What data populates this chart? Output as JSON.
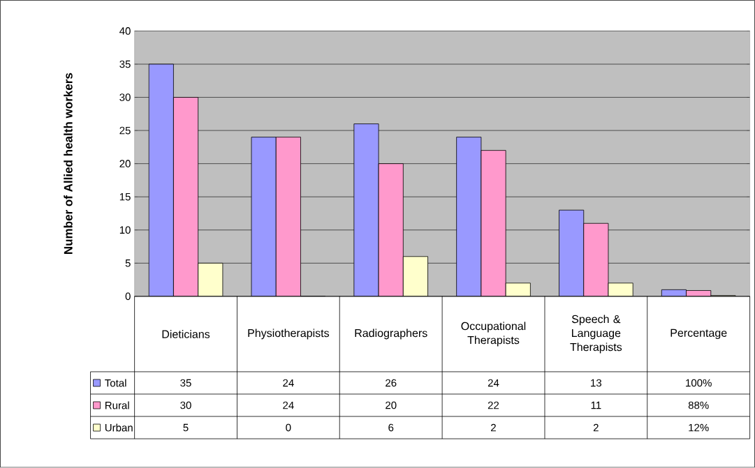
{
  "chart_data": {
    "type": "bar",
    "ylabel": "Number of Allied health workers",
    "categories": [
      "Dieticians",
      "Physiotherapists",
      "Radiographers",
      "Occupational Therapists",
      "Speech & Language Therapists",
      "Percentage"
    ],
    "series": [
      {
        "name": "Total",
        "color": "#9999ff",
        "values": [
          35,
          24,
          26,
          24,
          13,
          1
        ],
        "value_labels": [
          "35",
          "24",
          "26",
          "24",
          "13",
          "100%"
        ]
      },
      {
        "name": "Rural",
        "color": "#ff99cc",
        "values": [
          30,
          24,
          20,
          22,
          11,
          0.88
        ],
        "value_labels": [
          "30",
          "24",
          "20",
          "22",
          "11",
          "88%"
        ]
      },
      {
        "name": "Urban",
        "color": "#ffffcc",
        "values": [
          5,
          0,
          6,
          2,
          2,
          0.12
        ],
        "value_labels": [
          "5",
          "0",
          "6",
          "2",
          "2",
          "12%"
        ]
      }
    ],
    "ylim": [
      0,
      40
    ],
    "yticks": [
      0,
      5,
      10,
      15,
      20,
      25,
      30,
      35,
      40
    ],
    "grid": "y",
    "legend": "bottom"
  }
}
